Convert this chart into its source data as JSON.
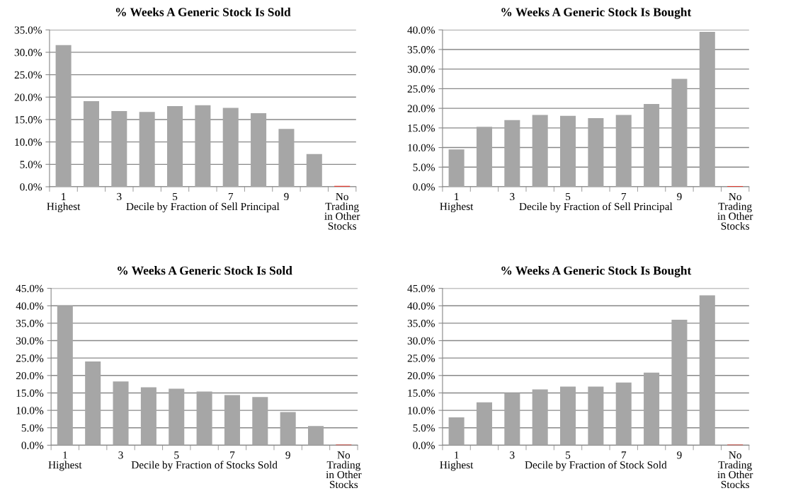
{
  "chart_data": [
    {
      "type": "bar",
      "title": "% Weeks A Generic Stock Is Sold",
      "xlabel": "Decile by Fraction of Sell Principal",
      "categories": [
        "1\nHighest",
        null,
        "3",
        null,
        "5",
        null,
        "7",
        null,
        "9",
        null,
        "No\nTrading\nin Other\nStocks"
      ],
      "values": [
        31.6,
        19.1,
        16.9,
        16.7,
        18.0,
        18.2,
        17.6,
        16.4,
        12.9,
        7.3,
        0.2
      ],
      "colors": [
        "#a6a6a6",
        "#a6a6a6",
        "#a6a6a6",
        "#a6a6a6",
        "#a6a6a6",
        "#a6a6a6",
        "#a6a6a6",
        "#a6a6a6",
        "#a6a6a6",
        "#a6a6a6",
        "#e03c31"
      ],
      "ylim": [
        0,
        35
      ],
      "yticks": [
        {
          "value": 0,
          "label": "0.0%"
        },
        {
          "value": 5,
          "label": "5.0%"
        },
        {
          "value": 10,
          "label": "10.0%"
        },
        {
          "value": 15,
          "label": "15.0%"
        },
        {
          "value": 20,
          "label": "20.0%"
        },
        {
          "value": 25,
          "label": "25.0%"
        },
        {
          "value": 30,
          "label": "30.0%"
        },
        {
          "value": 35,
          "label": "35.0%"
        }
      ],
      "grid": "y"
    },
    {
      "type": "bar",
      "title": "% Weeks A Generic Stock Is Bought",
      "xlabel": "Decile by Fraction of Sell Principal",
      "categories": [
        "1\nHighest",
        null,
        "3",
        null,
        "5",
        null,
        "7",
        null,
        "9",
        null,
        "No\nTrading\nin Other\nStocks"
      ],
      "values": [
        9.5,
        15.3,
        17.0,
        18.3,
        18.1,
        17.5,
        18.3,
        21.1,
        27.5,
        39.5,
        0.2
      ],
      "colors": [
        "#a6a6a6",
        "#a6a6a6",
        "#a6a6a6",
        "#a6a6a6",
        "#a6a6a6",
        "#a6a6a6",
        "#a6a6a6",
        "#a6a6a6",
        "#a6a6a6",
        "#a6a6a6",
        "#e03c31"
      ],
      "ylim": [
        0,
        40
      ],
      "yticks": [
        {
          "value": 0,
          "label": "0.0%"
        },
        {
          "value": 5,
          "label": "5.0%"
        },
        {
          "value": 10,
          "label": "10.0%"
        },
        {
          "value": 15,
          "label": "15.0%"
        },
        {
          "value": 20,
          "label": "20.0%"
        },
        {
          "value": 25,
          "label": "25.0%"
        },
        {
          "value": 30,
          "label": "30.0%"
        },
        {
          "value": 35,
          "label": "35.0%"
        },
        {
          "value": 40,
          "label": "40.0%"
        }
      ],
      "grid": "y"
    },
    {
      "type": "bar",
      "title": "% Weeks A Generic Stock Is Sold",
      "xlabel": "Decile by Fraction of Stocks Sold",
      "categories": [
        "1\nHighest",
        null,
        "3",
        null,
        "5",
        null,
        "7",
        null,
        "9",
        null,
        "No\nTrading\nin Other\nStocks"
      ],
      "values": [
        40.0,
        24.0,
        18.3,
        16.6,
        16.2,
        15.4,
        14.4,
        13.8,
        9.5,
        5.5,
        0.2
      ],
      "colors": [
        "#a6a6a6",
        "#a6a6a6",
        "#a6a6a6",
        "#a6a6a6",
        "#a6a6a6",
        "#a6a6a6",
        "#a6a6a6",
        "#a6a6a6",
        "#a6a6a6",
        "#a6a6a6",
        "#e03c31"
      ],
      "ylim": [
        0,
        45
      ],
      "yticks": [
        {
          "value": 0,
          "label": "0.0%"
        },
        {
          "value": 5,
          "label": "5.0%"
        },
        {
          "value": 10,
          "label": "10.0%"
        },
        {
          "value": 15,
          "label": "15.0%"
        },
        {
          "value": 20,
          "label": "20.0%"
        },
        {
          "value": 25,
          "label": "25.0%"
        },
        {
          "value": 30,
          "label": "30.0%"
        },
        {
          "value": 35,
          "label": "35.0%"
        },
        {
          "value": 40,
          "label": "40.0%"
        },
        {
          "value": 45,
          "label": "45.0%"
        }
      ],
      "grid": "y"
    },
    {
      "type": "bar",
      "title": "% Weeks A Generic Stock Is Bought",
      "xlabel": "Decile by Fraction of Stock Sold",
      "categories": [
        "1\nHighest",
        null,
        "3",
        null,
        "5",
        null,
        "7",
        null,
        "9",
        null,
        "No\nTrading\nin Other\nStocks"
      ],
      "values": [
        8.0,
        12.3,
        15.0,
        16.0,
        16.8,
        16.8,
        18.0,
        20.8,
        36.0,
        43.0,
        0.2
      ],
      "colors": [
        "#a6a6a6",
        "#a6a6a6",
        "#a6a6a6",
        "#a6a6a6",
        "#a6a6a6",
        "#a6a6a6",
        "#a6a6a6",
        "#a6a6a6",
        "#a6a6a6",
        "#a6a6a6",
        "#e03c31"
      ],
      "ylim": [
        0,
        45
      ],
      "yticks": [
        {
          "value": 0,
          "label": "0.0%"
        },
        {
          "value": 5,
          "label": "5.0%"
        },
        {
          "value": 10,
          "label": "10.0%"
        },
        {
          "value": 15,
          "label": "15.0%"
        },
        {
          "value": 20,
          "label": "20.0%"
        },
        {
          "value": 25,
          "label": "25.0%"
        },
        {
          "value": 30,
          "label": "30.0%"
        },
        {
          "value": 35,
          "label": "35.0%"
        },
        {
          "value": 40,
          "label": "40.0%"
        },
        {
          "value": 45,
          "label": "45.0%"
        }
      ],
      "grid": "y"
    }
  ]
}
